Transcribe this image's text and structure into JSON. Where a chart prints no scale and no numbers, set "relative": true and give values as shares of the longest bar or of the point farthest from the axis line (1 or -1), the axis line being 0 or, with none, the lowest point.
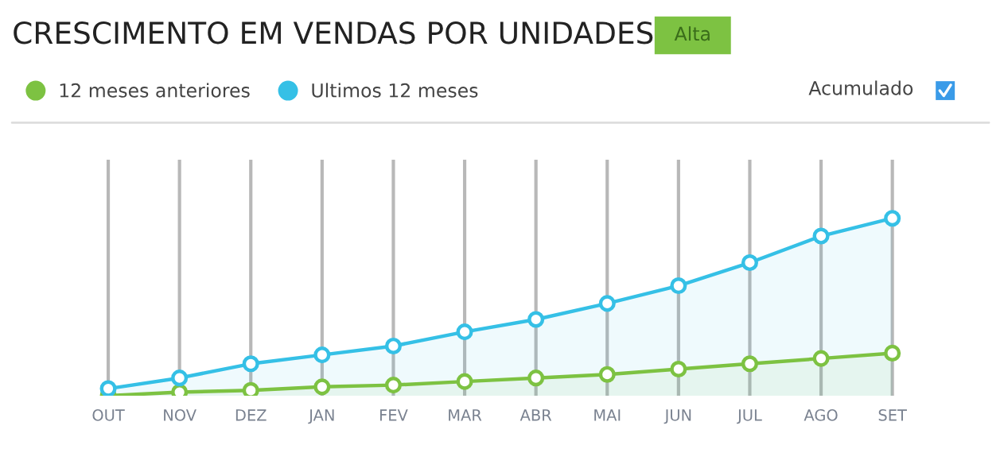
{
  "chart_data": {
    "type": "area",
    "title": "CRESCIMENTO EM VENDAS POR UNIDADES",
    "annotations": [
      "Alta",
      "Acumulado"
    ],
    "categories": [
      "OUT",
      "NOV",
      "DEZ",
      "JAN",
      "FEV",
      "MAR",
      "ABR",
      "MAI",
      "JUN",
      "JUL",
      "AGO",
      "SET"
    ],
    "relative": true,
    "grid": "x",
    "legend": "top left",
    "marker": "circle",
    "line_style": "solid",
    "series": [
      {
        "name": "12 meses anteriores",
        "color": "#7dc242",
        "values": [
          0,
          0.02,
          0.03,
          0.05,
          0.06,
          0.08,
          0.1,
          0.12,
          0.15,
          0.18,
          0.21,
          0.24
        ]
      },
      {
        "name": "Ultimos 12 meses",
        "color": "#35c0e6",
        "values": [
          0.04,
          0.1,
          0.18,
          0.23,
          0.28,
          0.36,
          0.43,
          0.52,
          0.62,
          0.75,
          0.9,
          1
        ]
      }
    ]
  }
}
